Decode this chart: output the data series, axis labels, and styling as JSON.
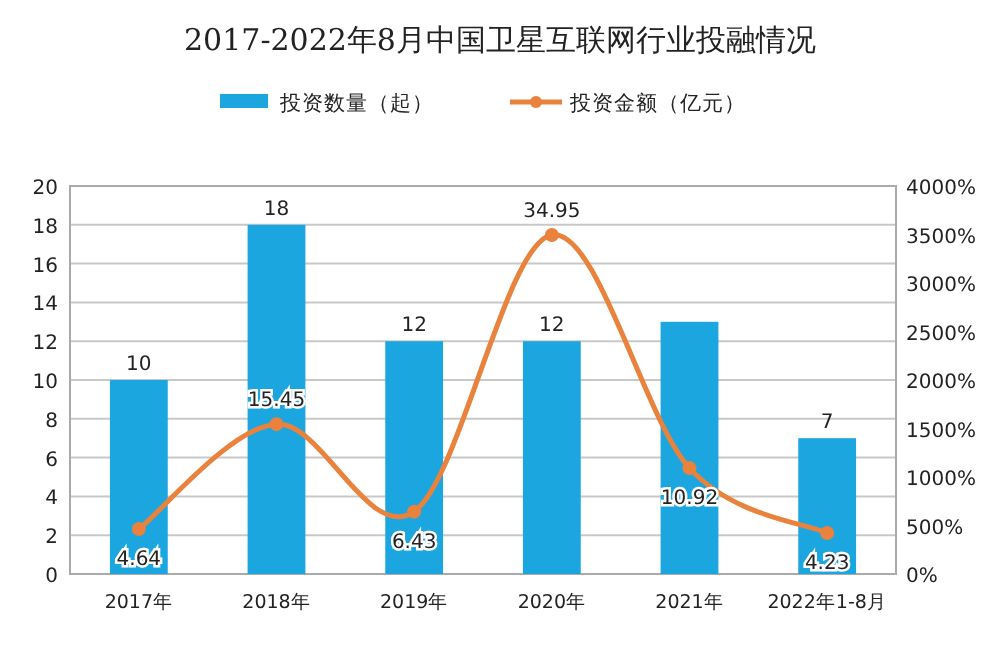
{
  "chart_data": {
    "type": "bar",
    "title": "2017-2022年8月中国卫星互联网行业投融情况",
    "categories": [
      "2017年",
      "2018年",
      "2019年",
      "2020年",
      "2021年",
      "2022年1-8月"
    ],
    "series": [
      {
        "name": "投资数量（起）",
        "color": "#1ba6e0",
        "values": [
          10,
          18,
          12,
          12,
          13,
          7
        ],
        "value_labels": [
          "10",
          "18",
          "12",
          "12",
          null,
          "7"
        ]
      },
      {
        "name": "投资金额（亿元）",
        "type": "line",
        "axis": "y2",
        "color": "#e8823c",
        "marker": "circle",
        "values": [
          4.64,
          15.45,
          6.43,
          34.95,
          10.92,
          4.23
        ],
        "value_labels": [
          "4.64",
          "15.45",
          "6.43",
          "34.95",
          "10.92",
          "4.23"
        ]
      }
    ],
    "ylim": [
      0,
      20
    ],
    "yticks": [
      0,
      2,
      4,
      6,
      8,
      10,
      12,
      14,
      16,
      18,
      20
    ],
    "y2lim": [
      0,
      40
    ],
    "y2ticks": [
      {
        "value": 0,
        "label": "0%"
      },
      {
        "value": 5,
        "label": "500%"
      },
      {
        "value": 10,
        "label": "1000%"
      },
      {
        "value": 15,
        "label": "1500%"
      },
      {
        "value": 20,
        "label": "2000%"
      },
      {
        "value": 25,
        "label": "2500%"
      },
      {
        "value": 30,
        "label": "3000%"
      },
      {
        "value": 35,
        "label": "3500%"
      },
      {
        "value": 40,
        "label": "4000%"
      }
    ],
    "grid": "y",
    "legend": "top"
  }
}
